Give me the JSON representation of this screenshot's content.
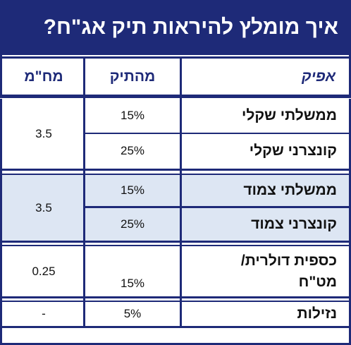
{
  "title": "איך מומלץ להיראות תיק אג\"ח?",
  "headers": {
    "col_category": "אפיק",
    "col_share": "מהתיק",
    "col_duration": "מח\"מ"
  },
  "groups": [
    {
      "duration": "3.5",
      "shaded": false,
      "rows": [
        {
          "category": "ממשלתי שקלי",
          "share": "15%"
        },
        {
          "category": "קונצרני שקלי",
          "share": "25%"
        }
      ]
    },
    {
      "duration": "3.5",
      "shaded": true,
      "rows": [
        {
          "category": "ממשלתי צמוד",
          "share": "15%"
        },
        {
          "category": "קונצרני צמוד",
          "share": "25%"
        }
      ]
    },
    {
      "duration": "0.25",
      "shaded": false,
      "rows": [
        {
          "category": "כספית דולרית/ מט\"ח",
          "share": "15%"
        }
      ]
    },
    {
      "duration": "-",
      "shaded": false,
      "rows": [
        {
          "category": "נזילות",
          "share": "5%"
        }
      ]
    }
  ],
  "colors": {
    "header_navy": "#1e2a78",
    "shade_blue": "#dde6f3"
  }
}
